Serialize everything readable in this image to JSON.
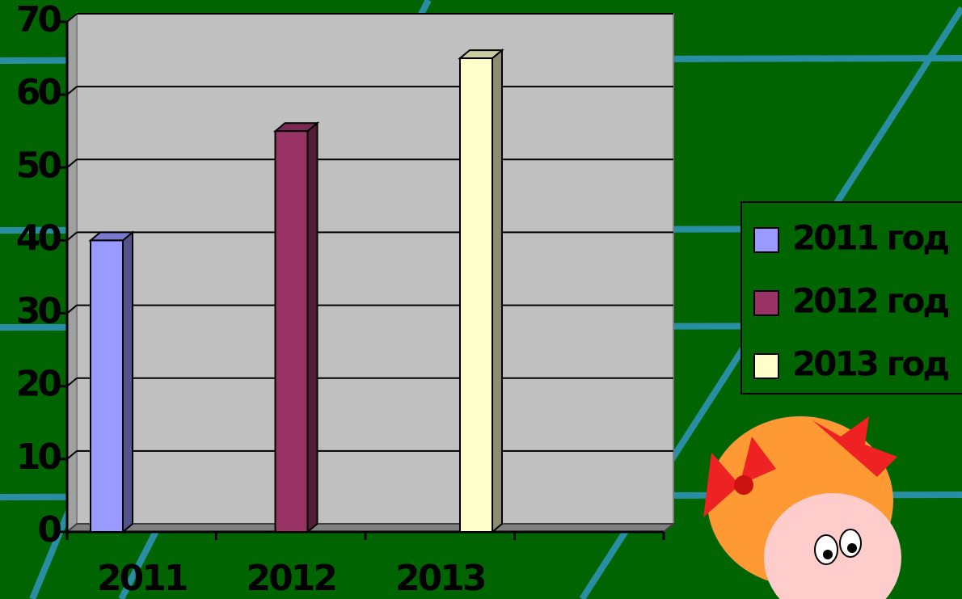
{
  "chart_data": {
    "type": "bar",
    "categories": [
      "2011",
      "2012",
      "2013",
      null
    ],
    "series": [
      {
        "name": "2011 год",
        "color": "#9999ff",
        "values": [
          40,
          null,
          null,
          null
        ]
      },
      {
        "name": "2012 год",
        "color": "#993366",
        "values": [
          null,
          55,
          null,
          null
        ]
      },
      {
        "name": "2013 год",
        "color": "#ffffcc",
        "values": [
          null,
          null,
          65,
          null
        ]
      }
    ],
    "ylim": [
      0,
      70
    ],
    "yticks": [
      0,
      10,
      20,
      30,
      40,
      50,
      60,
      70
    ],
    "grid": true,
    "legend": "right"
  }
}
